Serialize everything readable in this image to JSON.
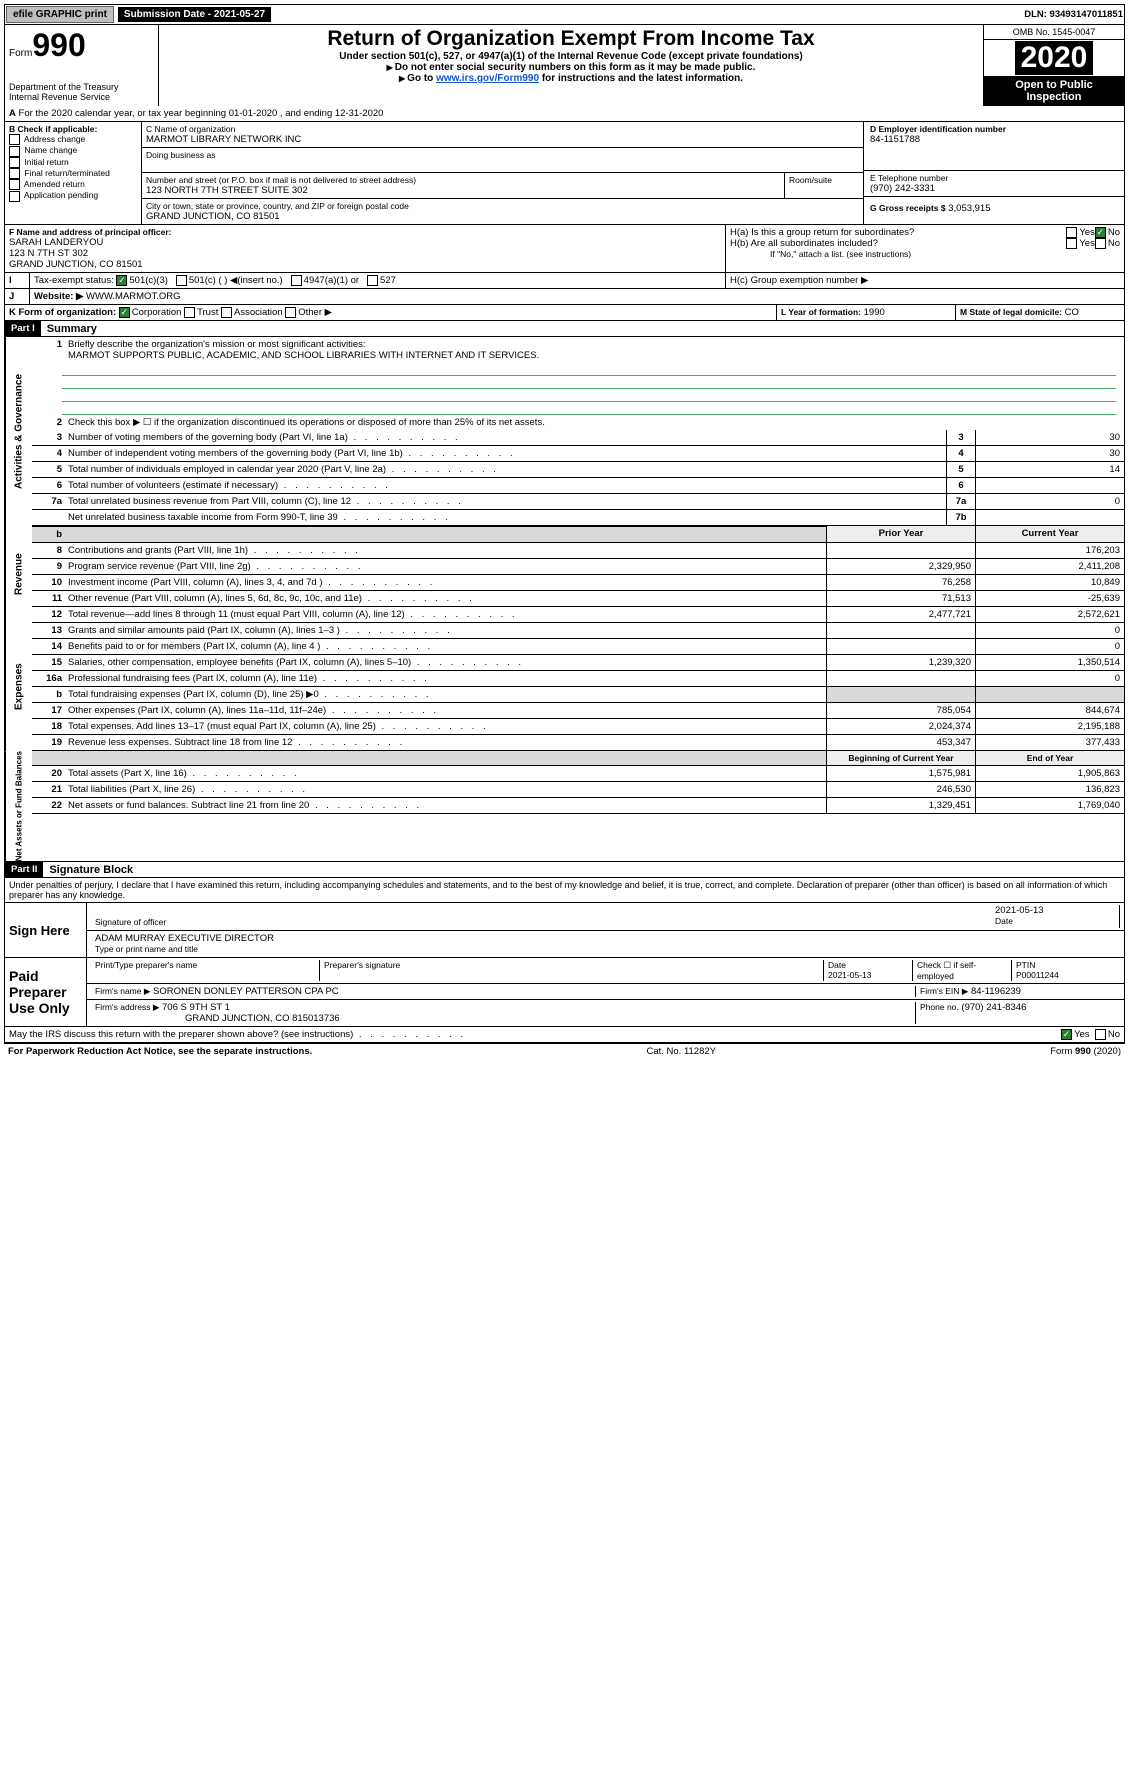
{
  "top": {
    "efile": "efile GRAPHIC print",
    "subdate_lbl": "Submission Date - 2021-05-27",
    "dln": "DLN: 93493147011851"
  },
  "hdr": {
    "form": "990",
    "form_lbl": "Form",
    "title": "Return of Organization Exempt From Income Tax",
    "sub1": "Under section 501(c), 527, or 4947(a)(1) of the Internal Revenue Code (except private foundations)",
    "sub2": "Do not enter social security numbers on this form as it may be made public.",
    "sub3_a": "Go to ",
    "sub3_link": "www.irs.gov/Form990",
    "sub3_b": " for instructions and the latest information.",
    "dept": "Department of the Treasury\nInternal Revenue Service",
    "omb": "OMB No. 1545-0047",
    "year": "2020",
    "open": "Open to Public Inspection"
  },
  "a": {
    "txt": "For the 2020 calendar year, or tax year beginning 01-01-2020    , and ending 12-31-2020"
  },
  "b": {
    "lbl": "B Check if applicable:",
    "opts": [
      "Address change",
      "Name change",
      "Initial return",
      "Final return/terminated",
      "Amended return",
      "Application pending"
    ]
  },
  "c": {
    "lbl": "C Name of organization",
    "name": "MARMOT LIBRARY NETWORK INC",
    "dba_lbl": "Doing business as",
    "addr_lbl": "Number and street (or P.O. box if mail is not delivered to street address)",
    "room_lbl": "Room/suite",
    "addr": "123 NORTH 7TH STREET SUITE 302",
    "city_lbl": "City or town, state or province, country, and ZIP or foreign postal code",
    "city": "GRAND JUNCTION, CO  81501"
  },
  "d": {
    "lbl": "D Employer identification number",
    "val": "84-1151788"
  },
  "e": {
    "lbl": "E Telephone number",
    "val": "(970) 242-3331"
  },
  "g": {
    "lbl": "G Gross receipts $",
    "val": "3,053,915"
  },
  "f": {
    "lbl": "F  Name and address of principal officer:",
    "name": "SARAH LANDERYOU",
    "l2": "123 N 7TH ST 302",
    "l3": "GRAND JUNCTION, CO  81501"
  },
  "h": {
    "a": "H(a)  Is this a group return for subordinates?",
    "b": "H(b)  Are all subordinates included?",
    "note": "If \"No,\" attach a list. (see instructions)",
    "c": "H(c)  Group exemption number ▶",
    "yes": "Yes",
    "no": "No"
  },
  "i": {
    "lbl": "Tax-exempt status:",
    "o1": "501(c)(3)",
    "o2": "501(c) (  ) ◀(insert no.)",
    "o3": "4947(a)(1) or",
    "o4": "527"
  },
  "j": {
    "lbl": "Website: ▶",
    "val": "WWW.MARMOT.ORG"
  },
  "k": {
    "lbl": "K Form of organization:",
    "o1": "Corporation",
    "o2": "Trust",
    "o3": "Association",
    "o4": "Other ▶"
  },
  "l": {
    "lbl": "L Year of formation:",
    "val": "1990"
  },
  "m": {
    "lbl": "M State of legal domicile:",
    "val": "CO"
  },
  "p1": {
    "hdr": "Part I",
    "title": "Summary"
  },
  "s1": {
    "q1": "Briefly describe the organization's mission or most significant activities:",
    "mission": "MARMOT SUPPORTS PUBLIC, ACADEMIC, AND SCHOOL LIBRARIES WITH INTERNET AND IT SERVICES.",
    "q2": "Check this box ▶ ☐  if the organization discontinued its operations or disposed of more than 25% of its net assets.",
    "rows": [
      {
        "n": "3",
        "t": "Number of voting members of the governing body (Part VI, line 1a)",
        "b": "3",
        "v": "30"
      },
      {
        "n": "4",
        "t": "Number of independent voting members of the governing body (Part VI, line 1b)",
        "b": "4",
        "v": "30"
      },
      {
        "n": "5",
        "t": "Total number of individuals employed in calendar year 2020 (Part V, line 2a)",
        "b": "5",
        "v": "14"
      },
      {
        "n": "6",
        "t": "Total number of volunteers (estimate if necessary)",
        "b": "6",
        "v": ""
      },
      {
        "n": "7a",
        "t": "Total unrelated business revenue from Part VIII, column (C), line 12",
        "b": "7a",
        "v": "0"
      },
      {
        "n": "",
        "t": "Net unrelated business taxable income from Form 990-T, line 39",
        "b": "7b",
        "v": ""
      }
    ]
  },
  "rev": {
    "h1": "Prior Year",
    "h2": "Current Year",
    "rows": [
      {
        "n": "8",
        "t": "Contributions and grants (Part VIII, line 1h)",
        "p": "",
        "c": "176,203"
      },
      {
        "n": "9",
        "t": "Program service revenue (Part VIII, line 2g)",
        "p": "2,329,950",
        "c": "2,411,208"
      },
      {
        "n": "10",
        "t": "Investment income (Part VIII, column (A), lines 3, 4, and 7d )",
        "p": "76,258",
        "c": "10,849"
      },
      {
        "n": "11",
        "t": "Other revenue (Part VIII, column (A), lines 5, 6d, 8c, 9c, 10c, and 11e)",
        "p": "71,513",
        "c": "-25,639"
      },
      {
        "n": "12",
        "t": "Total revenue—add lines 8 through 11 (must equal Part VIII, column (A), line 12)",
        "p": "2,477,721",
        "c": "2,572,621"
      }
    ]
  },
  "exp": {
    "rows": [
      {
        "n": "13",
        "t": "Grants and similar amounts paid (Part IX, column (A), lines 1–3 )",
        "p": "",
        "c": "0"
      },
      {
        "n": "14",
        "t": "Benefits paid to or for members (Part IX, column (A), line 4 )",
        "p": "",
        "c": "0"
      },
      {
        "n": "15",
        "t": "Salaries, other compensation, employee benefits (Part IX, column (A), lines 5–10)",
        "p": "1,239,320",
        "c": "1,350,514"
      },
      {
        "n": "16a",
        "t": "Professional fundraising fees (Part IX, column (A), line 11e)",
        "p": "",
        "c": "0"
      },
      {
        "n": "b",
        "t": "Total fundraising expenses (Part IX, column (D), line 25) ▶0",
        "p": "—",
        "c": "—"
      },
      {
        "n": "17",
        "t": "Other expenses (Part IX, column (A), lines 11a–11d, 11f–24e)",
        "p": "785,054",
        "c": "844,674"
      },
      {
        "n": "18",
        "t": "Total expenses. Add lines 13–17 (must equal Part IX, column (A), line 25)",
        "p": "2,024,374",
        "c": "2,195,188"
      },
      {
        "n": "19",
        "t": "Revenue less expenses. Subtract line 18 from line 12",
        "p": "453,347",
        "c": "377,433"
      }
    ]
  },
  "net": {
    "h1": "Beginning of Current Year",
    "h2": "End of Year",
    "rows": [
      {
        "n": "20",
        "t": "Total assets (Part X, line 16)",
        "p": "1,575,981",
        "c": "1,905,863"
      },
      {
        "n": "21",
        "t": "Total liabilities (Part X, line 26)",
        "p": "246,530",
        "c": "136,823"
      },
      {
        "n": "22",
        "t": "Net assets or fund balances. Subtract line 21 from line 20",
        "p": "1,329,451",
        "c": "1,769,040"
      }
    ]
  },
  "sides": {
    "s1": "Activities & Governance",
    "s2": "Revenue",
    "s3": "Expenses",
    "s4": "Net Assets or Fund Balances"
  },
  "p2": {
    "hdr": "Part II",
    "title": "Signature Block",
    "decl": "Under penalties of perjury, I declare that I have examined this return, including accompanying schedules and statements, and to the best of my knowledge and belief, it is true, correct, and complete. Declaration of preparer (other than officer) is based on all information of which preparer has any knowledge."
  },
  "sign": {
    "side": "Sign Here",
    "s1": "Signature of officer",
    "date": "2021-05-13",
    "date_lbl": "Date",
    "name": "ADAM MURRAY  EXECUTIVE DIRECTOR",
    "name_lbl": "Type or print name and title"
  },
  "paid": {
    "side": "Paid Preparer Use Only",
    "h1": "Print/Type preparer's name",
    "h2": "Preparer's signature",
    "h3": "Date",
    "h4": "Check ☐ if self-employed",
    "h5": "PTIN",
    "date": "2021-05-13",
    "ptin": "P00011244",
    "firm_lbl": "Firm's name    ▶",
    "firm": "SORONEN DONLEY PATTERSON CPA PC",
    "ein_lbl": "Firm's EIN ▶",
    "ein": "84-1196239",
    "addr_lbl": "Firm's address ▶",
    "addr1": "706 S 9TH ST 1",
    "addr2": "GRAND JUNCTION, CO  815013736",
    "ph_lbl": "Phone no.",
    "ph": "(970) 241-8346"
  },
  "disc": {
    "q": "May the IRS discuss this return with the preparer shown above? (see instructions)",
    "yes": "Yes",
    "no": "No"
  },
  "foot": {
    "l": "For Paperwork Reduction Act Notice, see the separate instructions.",
    "m": "Cat. No. 11282Y",
    "r": "Form 990 (2020)"
  }
}
